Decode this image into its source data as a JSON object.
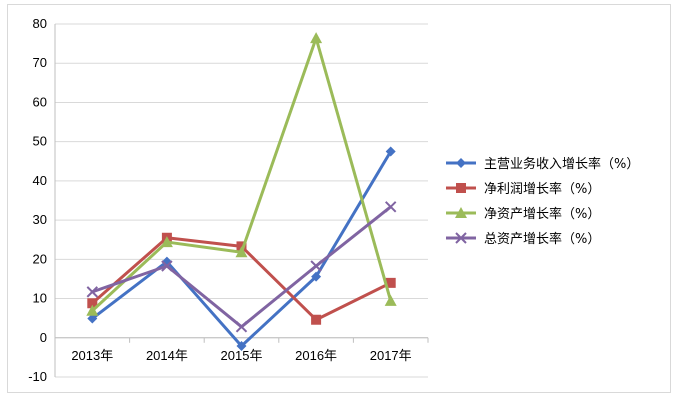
{
  "chart_data": {
    "type": "line",
    "categories": [
      "2013年",
      "2014年",
      "2015年",
      "2016年",
      "2017年"
    ],
    "ylim": [
      -10,
      80
    ],
    "yticks": [
      "-10",
      "0",
      "10",
      "20",
      "30",
      "40",
      "50",
      "60",
      "70",
      "80"
    ],
    "grid": true,
    "legend_position": "right",
    "series": [
      {
        "name": "主营业务收入增长率（%）",
        "color": "#4472c4",
        "marker": "diamond",
        "values": [
          4.9,
          19.4,
          -2.1,
          15.6,
          47.5
        ]
      },
      {
        "name": "净利润增长率（%）",
        "color": "#c0504d",
        "marker": "square",
        "values": [
          8.8,
          25.5,
          23.3,
          4.6,
          14.0
        ]
      },
      {
        "name": "净资产增长率（%）",
        "color": "#9bbb59",
        "marker": "triangle",
        "values": [
          6.9,
          24.4,
          21.8,
          76.4,
          9.4
        ]
      },
      {
        "name": "总资产增长率（%）",
        "color": "#8064a2",
        "marker": "x",
        "values": [
          11.7,
          18.3,
          2.8,
          18.3,
          33.4
        ]
      }
    ]
  }
}
